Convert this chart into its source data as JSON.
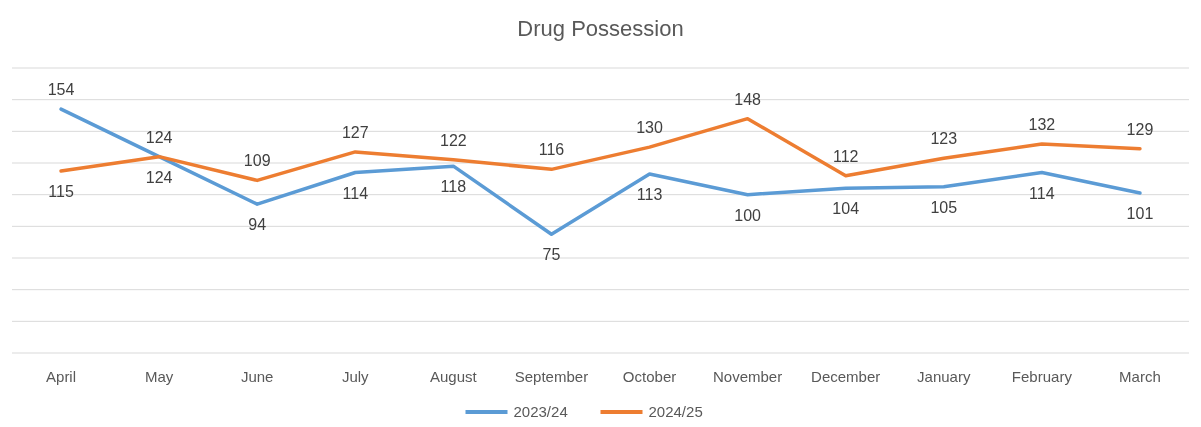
{
  "chart_data": {
    "type": "line",
    "title": "Drug Possession",
    "categories": [
      "April",
      "May",
      "June",
      "July",
      "August",
      "September",
      "October",
      "November",
      "December",
      "January",
      "February",
      "March"
    ],
    "series": [
      {
        "name": "2023/24",
        "color": "#5b9bd5",
        "values": [
          154,
          124,
          94,
          114,
          118,
          75,
          113,
          100,
          104,
          105,
          114,
          101
        ]
      },
      {
        "name": "2024/25",
        "color": "#ed7d31",
        "values": [
          115,
          124,
          109,
          127,
          122,
          116,
          130,
          148,
          112,
          123,
          132,
          129
        ]
      }
    ],
    "ylim": [
      0,
      180
    ],
    "yticks": [
      {
        "value": 0,
        "label": null
      },
      {
        "value": 20,
        "label": null
      },
      {
        "value": 40,
        "label": null
      },
      {
        "value": 60,
        "label": null
      },
      {
        "value": 80,
        "label": null
      },
      {
        "value": 100,
        "label": null
      },
      {
        "value": 120,
        "label": null
      },
      {
        "value": 140,
        "label": null
      },
      {
        "value": 160,
        "label": null
      },
      {
        "value": 180,
        "label": null
      }
    ],
    "tick_labels": "x",
    "grid": "y",
    "data_labels": true,
    "legend": "bottom",
    "marker": "none",
    "line_style": "solid"
  }
}
